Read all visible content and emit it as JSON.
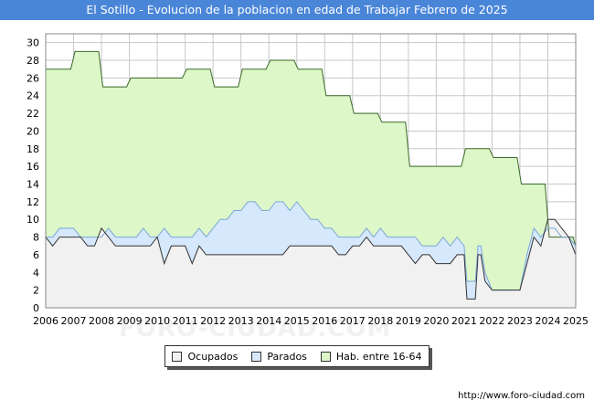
{
  "title": "El Sotillo - Evolucion de la poblacion en edad de Trabajar Febrero de 2025",
  "watermark": "FORO-CIUDAD.COM",
  "footer": "http://www.foro-ciudad.com",
  "colors": {
    "title_bg": "#4a86d8",
    "hab_fill": "#ddf7c8",
    "hab_line": "#3a6a2a",
    "parados_fill": "#d6e8fb",
    "parados_line": "#7aa7d8",
    "ocupados_fill": "#f1f1f1",
    "ocupados_line": "#333333",
    "grid": "#c8c8c8"
  },
  "legend": [
    {
      "label": "Ocupados",
      "color": "#f1f1f1"
    },
    {
      "label": "Parados",
      "color": "#d6e8fb"
    },
    {
      "label": "Hab. entre 16-64",
      "color": "#ddf7c8"
    }
  ],
  "chart_data": {
    "type": "area",
    "title": "El Sotillo - Evolucion de la poblacion en edad de Trabajar Febrero de 2025",
    "xlabel": "",
    "ylabel": "",
    "xlim": [
      2006,
      2025
    ],
    "ylim": [
      0,
      31
    ],
    "yticks": [
      0,
      2,
      4,
      6,
      8,
      10,
      12,
      14,
      16,
      18,
      20,
      22,
      24,
      26,
      28,
      30
    ],
    "xticks": [
      "2006",
      "2007",
      "2008",
      "2009",
      "2010",
      "2011",
      "2012",
      "2013",
      "2014",
      "2015",
      "2016",
      "2017",
      "2018",
      "2019",
      "2020",
      "2021",
      "2022",
      "2023",
      "2024",
      "2025"
    ],
    "grid": true,
    "legend_position": "bottom",
    "series": [
      {
        "name": "Hab. entre 16-64",
        "points": [
          [
            2006,
            27
          ],
          [
            2006.9,
            27
          ],
          [
            2007.05,
            29
          ],
          [
            2007.9,
            29
          ],
          [
            2008.05,
            25
          ],
          [
            2008.9,
            25
          ],
          [
            2009.05,
            26
          ],
          [
            2010.9,
            26
          ],
          [
            2011.05,
            27
          ],
          [
            2011.9,
            27
          ],
          [
            2012.05,
            25
          ],
          [
            2012.9,
            25
          ],
          [
            2013.05,
            27
          ],
          [
            2013.9,
            27
          ],
          [
            2014.05,
            28
          ],
          [
            2014.9,
            28
          ],
          [
            2015.05,
            27
          ],
          [
            2015.9,
            27
          ],
          [
            2016.05,
            24
          ],
          [
            2016.9,
            24
          ],
          [
            2017.05,
            22
          ],
          [
            2017.9,
            22
          ],
          [
            2018.05,
            21
          ],
          [
            2018.9,
            21
          ],
          [
            2019.05,
            16
          ],
          [
            2020.9,
            16
          ],
          [
            2021.05,
            18
          ],
          [
            2021.9,
            18
          ],
          [
            2022.05,
            17
          ],
          [
            2022.9,
            17
          ],
          [
            2023.05,
            14
          ],
          [
            2023.9,
            14
          ],
          [
            2024.05,
            8
          ],
          [
            2024.9,
            8
          ],
          [
            2025,
            7
          ]
        ]
      },
      {
        "name": "Parados",
        "points": [
          [
            2006,
            8
          ],
          [
            2006.25,
            8
          ],
          [
            2006.5,
            9
          ],
          [
            2007,
            9
          ],
          [
            2007.25,
            8
          ],
          [
            2007.5,
            8
          ],
          [
            2007.75,
            8
          ],
          [
            2008,
            8
          ],
          [
            2008.25,
            9
          ],
          [
            2008.5,
            8
          ],
          [
            2008.75,
            8
          ],
          [
            2009,
            8
          ],
          [
            2009.25,
            8
          ],
          [
            2009.5,
            9
          ],
          [
            2009.75,
            8
          ],
          [
            2010,
            8
          ],
          [
            2010.25,
            9
          ],
          [
            2010.5,
            8
          ],
          [
            2010.75,
            8
          ],
          [
            2011,
            8
          ],
          [
            2011.25,
            8
          ],
          [
            2011.5,
            9
          ],
          [
            2011.75,
            8
          ],
          [
            2012,
            9
          ],
          [
            2012.25,
            10
          ],
          [
            2012.5,
            10
          ],
          [
            2012.75,
            11
          ],
          [
            2013,
            11
          ],
          [
            2013.25,
            12
          ],
          [
            2013.5,
            12
          ],
          [
            2013.75,
            11
          ],
          [
            2014,
            11
          ],
          [
            2014.25,
            12
          ],
          [
            2014.5,
            12
          ],
          [
            2014.75,
            11
          ],
          [
            2015,
            12
          ],
          [
            2015.25,
            11
          ],
          [
            2015.5,
            10
          ],
          [
            2015.75,
            10
          ],
          [
            2016,
            9
          ],
          [
            2016.25,
            9
          ],
          [
            2016.5,
            8
          ],
          [
            2016.75,
            8
          ],
          [
            2017,
            8
          ],
          [
            2017.25,
            8
          ],
          [
            2017.5,
            9
          ],
          [
            2017.75,
            8
          ],
          [
            2018,
            9
          ],
          [
            2018.25,
            8
          ],
          [
            2018.5,
            8
          ],
          [
            2018.75,
            8
          ],
          [
            2019,
            8
          ],
          [
            2019.25,
            8
          ],
          [
            2019.5,
            7
          ],
          [
            2019.75,
            7
          ],
          [
            2020,
            7
          ],
          [
            2020.25,
            8
          ],
          [
            2020.5,
            7
          ],
          [
            2020.75,
            8
          ],
          [
            2021,
            7
          ],
          [
            2021.1,
            3
          ],
          [
            2021.4,
            3
          ],
          [
            2021.5,
            7
          ],
          [
            2021.6,
            7
          ],
          [
            2021.75,
            4
          ],
          [
            2022,
            2
          ],
          [
            2022.25,
            2
          ],
          [
            2022.5,
            2
          ],
          [
            2022.75,
            2
          ],
          [
            2023,
            2
          ],
          [
            2023.25,
            6
          ],
          [
            2023.5,
            9
          ],
          [
            2023.75,
            8
          ],
          [
            2024,
            9
          ],
          [
            2024.25,
            9
          ],
          [
            2024.5,
            8
          ],
          [
            2024.75,
            8
          ],
          [
            2025,
            7
          ]
        ]
      },
      {
        "name": "Ocupados",
        "points": [
          [
            2006,
            8
          ],
          [
            2006.25,
            7
          ],
          [
            2006.5,
            8
          ],
          [
            2006.75,
            8
          ],
          [
            2007,
            8
          ],
          [
            2007.25,
            8
          ],
          [
            2007.5,
            7
          ],
          [
            2007.75,
            7
          ],
          [
            2008,
            9
          ],
          [
            2008.25,
            8
          ],
          [
            2008.5,
            7
          ],
          [
            2008.75,
            7
          ],
          [
            2009,
            7
          ],
          [
            2009.25,
            7
          ],
          [
            2009.5,
            7
          ],
          [
            2009.75,
            7
          ],
          [
            2010,
            8
          ],
          [
            2010.25,
            5
          ],
          [
            2010.5,
            7
          ],
          [
            2010.75,
            7
          ],
          [
            2011,
            7
          ],
          [
            2011.25,
            5
          ],
          [
            2011.5,
            7
          ],
          [
            2011.75,
            6
          ],
          [
            2012,
            6
          ],
          [
            2012.25,
            6
          ],
          [
            2012.5,
            6
          ],
          [
            2012.75,
            6
          ],
          [
            2013,
            6
          ],
          [
            2013.25,
            6
          ],
          [
            2013.5,
            6
          ],
          [
            2013.75,
            6
          ],
          [
            2014,
            6
          ],
          [
            2014.25,
            6
          ],
          [
            2014.5,
            6
          ],
          [
            2014.75,
            7
          ],
          [
            2015,
            7
          ],
          [
            2015.25,
            7
          ],
          [
            2015.5,
            7
          ],
          [
            2015.75,
            7
          ],
          [
            2016,
            7
          ],
          [
            2016.25,
            7
          ],
          [
            2016.5,
            6
          ],
          [
            2016.75,
            6
          ],
          [
            2017,
            7
          ],
          [
            2017.25,
            7
          ],
          [
            2017.5,
            8
          ],
          [
            2017.75,
            7
          ],
          [
            2018,
            7
          ],
          [
            2018.25,
            7
          ],
          [
            2018.5,
            7
          ],
          [
            2018.75,
            7
          ],
          [
            2019,
            6
          ],
          [
            2019.25,
            5
          ],
          [
            2019.5,
            6
          ],
          [
            2019.75,
            6
          ],
          [
            2020,
            5
          ],
          [
            2020.25,
            5
          ],
          [
            2020.5,
            5
          ],
          [
            2020.75,
            6
          ],
          [
            2021,
            6
          ],
          [
            2021.1,
            1
          ],
          [
            2021.4,
            1
          ],
          [
            2021.5,
            6
          ],
          [
            2021.6,
            6
          ],
          [
            2021.75,
            3
          ],
          [
            2022,
            2
          ],
          [
            2022.25,
            2
          ],
          [
            2022.5,
            2
          ],
          [
            2022.75,
            2
          ],
          [
            2023,
            2
          ],
          [
            2023.25,
            5
          ],
          [
            2023.5,
            8
          ],
          [
            2023.75,
            7
          ],
          [
            2024,
            10
          ],
          [
            2024.25,
            10
          ],
          [
            2024.5,
            9
          ],
          [
            2024.75,
            8
          ],
          [
            2025,
            6
          ]
        ]
      }
    ]
  }
}
